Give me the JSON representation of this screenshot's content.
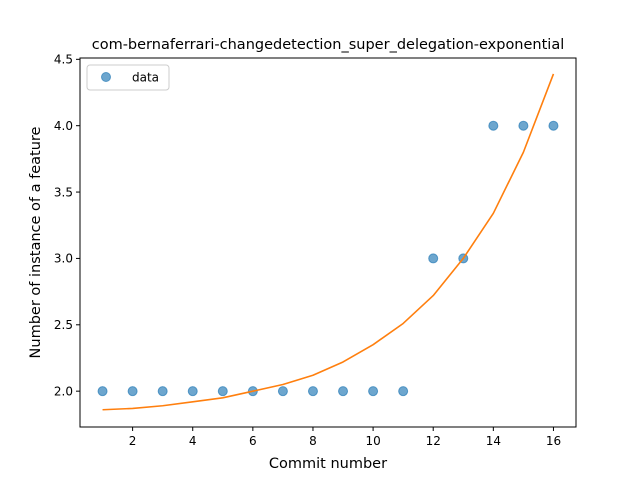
{
  "chart_data": {
    "type": "scatter",
    "title": "com-bernaferrari-changedetection_super_delegation-exponential",
    "xlabel": "Commit number",
    "ylabel": "Number of instance of a feature",
    "xlim": [
      0.25,
      16.75
    ],
    "ylim": [
      1.73,
      4.51
    ],
    "xticks": [
      2,
      4,
      6,
      8,
      10,
      12,
      14,
      16
    ],
    "xtick_labels": [
      "2",
      "4",
      "6",
      "8",
      "10",
      "12",
      "14",
      "16"
    ],
    "yticks": [
      2.0,
      2.5,
      3.0,
      3.5,
      4.0,
      4.5
    ],
    "ytick_labels": [
      "2.0",
      "2.5",
      "3.0",
      "3.5",
      "4.0",
      "4.5"
    ],
    "grid": false,
    "legend": {
      "position": "top-left",
      "entries": [
        "data"
      ]
    },
    "series": [
      {
        "name": "data",
        "kind": "scatter",
        "color": "#1f77b4",
        "x": [
          1,
          2,
          3,
          4,
          5,
          6,
          7,
          8,
          9,
          10,
          11,
          12,
          13,
          14,
          15,
          16
        ],
        "y": [
          2,
          2,
          2,
          2,
          2,
          2,
          2,
          2,
          2,
          2,
          2,
          3,
          3,
          4,
          4,
          4
        ]
      },
      {
        "kind": "line",
        "color": "#ff7f0e",
        "x": [
          1,
          2,
          3,
          4,
          5,
          6,
          7,
          8,
          9,
          10,
          11,
          12,
          13,
          14,
          15,
          16
        ],
        "y": [
          1.86,
          1.87,
          1.89,
          1.92,
          1.95,
          2.0,
          2.05,
          2.12,
          2.22,
          2.35,
          2.51,
          2.72,
          3.0,
          3.34,
          3.8,
          4.39
        ]
      }
    ]
  }
}
